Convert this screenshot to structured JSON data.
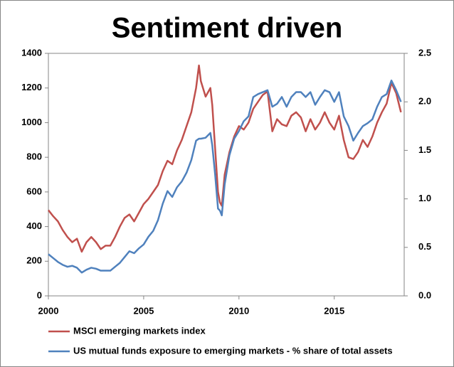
{
  "chart_data": {
    "type": "line",
    "title": "Sentiment driven",
    "x": [
      2000,
      2000.25,
      2000.5,
      2000.75,
      2001,
      2001.25,
      2001.5,
      2001.75,
      2002,
      2002.25,
      2002.5,
      2002.75,
      2003,
      2003.25,
      2003.5,
      2003.75,
      2004,
      2004.25,
      2004.5,
      2004.75,
      2005,
      2005.25,
      2005.5,
      2005.75,
      2006,
      2006.25,
      2006.5,
      2006.75,
      2007,
      2007.25,
      2007.5,
      2007.75,
      2007.9,
      2008,
      2008.25,
      2008.5,
      2008.6,
      2008.75,
      2008.9,
      2009,
      2009.1,
      2009.25,
      2009.5,
      2009.75,
      2010,
      2010.25,
      2010.5,
      2010.75,
      2011,
      2011.25,
      2011.5,
      2011.75,
      2012,
      2012.25,
      2012.5,
      2012.75,
      2013,
      2013.25,
      2013.5,
      2013.75,
      2014,
      2014.25,
      2014.5,
      2014.75,
      2015,
      2015.25,
      2015.5,
      2015.75,
      2016,
      2016.25,
      2016.5,
      2016.75,
      2017,
      2017.25,
      2017.5,
      2017.75,
      2018,
      2018.25,
      2018.5
    ],
    "series": [
      {
        "name": "MSCI emerging markets index",
        "color": "#c0504d",
        "axis": "y",
        "values": [
          495,
          460,
          430,
          380,
          340,
          310,
          330,
          255,
          310,
          340,
          310,
          270,
          290,
          290,
          340,
          400,
          450,
          470,
          430,
          480,
          530,
          560,
          600,
          640,
          720,
          780,
          760,
          840,
          900,
          980,
          1060,
          1200,
          1330,
          1240,
          1150,
          1200,
          1100,
          850,
          600,
          540,
          520,
          700,
          830,
          920,
          980,
          960,
          1000,
          1080,
          1120,
          1160,
          1180,
          950,
          1020,
          990,
          980,
          1040,
          1060,
          1030,
          950,
          1020,
          960,
          1000,
          1060,
          1000,
          960,
          1040,
          900,
          800,
          790,
          830,
          900,
          860,
          920,
          1000,
          1060,
          1110,
          1230,
          1170,
          1060
        ]
      },
      {
        "name": "US mutual funds exposure to emerging markets - % share of total assets",
        "color": "#4f81bd",
        "axis": "y2",
        "values": [
          0.43,
          0.39,
          0.35,
          0.32,
          0.3,
          0.31,
          0.29,
          0.24,
          0.27,
          0.29,
          0.28,
          0.26,
          0.26,
          0.26,
          0.3,
          0.34,
          0.4,
          0.46,
          0.44,
          0.49,
          0.53,
          0.61,
          0.67,
          0.78,
          0.95,
          1.08,
          1.02,
          1.12,
          1.18,
          1.27,
          1.4,
          1.6,
          1.62,
          1.62,
          1.63,
          1.68,
          1.55,
          1.25,
          0.9,
          0.88,
          0.83,
          1.15,
          1.45,
          1.62,
          1.7,
          1.8,
          1.85,
          2.05,
          2.08,
          2.1,
          2.12,
          1.95,
          1.98,
          2.05,
          1.95,
          2.05,
          2.1,
          2.1,
          2.05,
          2.1,
          1.97,
          2.05,
          2.12,
          2.1,
          2.0,
          2.1,
          1.85,
          1.75,
          1.6,
          1.68,
          1.75,
          1.78,
          1.82,
          1.95,
          2.05,
          2.08,
          2.22,
          2.12,
          2.0
        ]
      }
    ],
    "xlim": [
      2000,
      2018.67
    ],
    "xticks": [
      2000,
      2005,
      2010,
      2015
    ],
    "ylim": [
      0,
      1400
    ],
    "yticks": [
      0,
      200,
      400,
      600,
      800,
      1000,
      1200,
      1400
    ],
    "y2lim": [
      0,
      2.5
    ],
    "y2ticks": [
      {
        "value": 0,
        "label": "0.0"
      },
      0.5,
      {
        "value": 1,
        "label": "1.0"
      },
      1.5,
      {
        "value": 2,
        "label": "2.0"
      },
      2.5
    ],
    "grid": false,
    "legend": "bottom"
  }
}
